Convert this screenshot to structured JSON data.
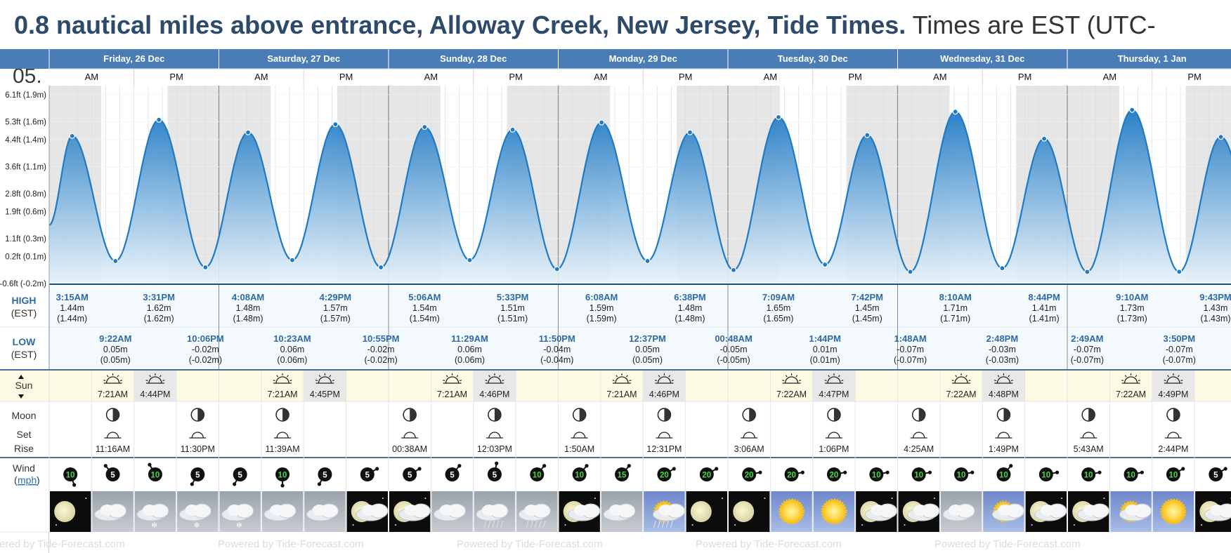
{
  "page": {
    "title": "0.8 nautical miles above entrance, Alloway Creek, New Jersey, Tide Times.",
    "timezone_note": "Times are EST (UTC-"
  },
  "colors": {
    "header_blue": "#4a7db5",
    "tide_blue": "#1f7ac4",
    "highlight_row": "#fcfae3",
    "label_text": "#2d6aa8"
  },
  "rows": {
    "high_label": "HIGH",
    "high_sub": "(EST)",
    "low_label": "LOW",
    "low_sub": "(EST)",
    "sun_label": "Sun",
    "moon_label": "Moon",
    "moon_set": "Set",
    "moon_rise": "Rise",
    "wind_label": "Wind",
    "wind_unit": "mph",
    "am": "AM",
    "pm": "PM",
    "footer": "Powered by Tide-Forecast.com"
  },
  "days": [
    {
      "label": "Friday, 26 Dec",
      "sunrise": "7:21AM",
      "sunset": "4:44PM",
      "moonset": "11:16AM",
      "moonrise": "11:30PM",
      "wind": [
        10,
        5,
        10,
        5
      ]
    },
    {
      "label": "Saturday, 27 Dec",
      "sunrise": "7:21AM",
      "sunset": "4:45PM",
      "moonset": "11:39AM",
      "moonrise": "",
      "wind": [
        5,
        10,
        5,
        5
      ]
    },
    {
      "label": "Sunday, 28 Dec",
      "sunrise": "7:21AM",
      "sunset": "4:46PM",
      "moonset": "00:38AM",
      "moonrise": "12:03PM",
      "wind": [
        5,
        5,
        5,
        10
      ]
    },
    {
      "label": "Monday, 29 Dec",
      "sunrise": "7:21AM",
      "sunset": "4:46PM",
      "moonset": "1:50AM",
      "moonrise": "12:31PM",
      "wind": [
        10,
        15,
        20,
        20
      ]
    },
    {
      "label": "Tuesday, 30 Dec",
      "sunrise": "7:22AM",
      "sunset": "4:47PM",
      "moonset": "3:06AM",
      "moonrise": "1:06PM",
      "wind": [
        20,
        20,
        20,
        10
      ]
    },
    {
      "label": "Wednesday, 31 Dec",
      "sunrise": "7:22AM",
      "sunset": "4:48PM",
      "moonset": "4:25AM",
      "moonrise": "1:49PM",
      "wind": [
        10,
        10,
        10,
        10
      ]
    },
    {
      "label": "Thursday, 1 Jan",
      "sunrise": "7:22AM",
      "sunset": "4:49PM",
      "moonset": "5:43AM",
      "moonrise": "2:44PM",
      "wind": [
        10,
        10,
        10,
        5
      ]
    }
  ],
  "chart_data": {
    "type": "area",
    "y_ticks": [
      "6.1ft (1.9m)",
      "5.3ft (1.6m)",
      "4.4ft (1.4m)",
      "3.6ft (1.1m)",
      "2.8ft (0.8m)",
      "1.9ft (0.6m)",
      "1.1ft (0.3m)",
      "0.2ft (0.1m)",
      "-0.6ft (-0.2m)"
    ],
    "y_tick_values_m": [
      1.9,
      1.6,
      1.4,
      1.1,
      0.8,
      0.6,
      0.3,
      0.1,
      -0.2
    ],
    "partial_top_tick": "05.",
    "ylim_m": [
      -0.2,
      2.0
    ],
    "xlim_hours": [
      0,
      168
    ],
    "highs": [
      {
        "day": 0,
        "time": "3:15AM",
        "h": 3.25,
        "m": "1.44m",
        "alt": "(1.44m)"
      },
      {
        "day": 0,
        "time": "3:31PM",
        "h": 15.52,
        "m": "1.62m",
        "alt": "(1.62m)"
      },
      {
        "day": 1,
        "time": "4:08AM",
        "h": 28.13,
        "m": "1.48m",
        "alt": "(1.48m)"
      },
      {
        "day": 1,
        "time": "4:29PM",
        "h": 40.48,
        "m": "1.57m",
        "alt": "(1.57m)"
      },
      {
        "day": 2,
        "time": "5:06AM",
        "h": 53.1,
        "m": "1.54m",
        "alt": "(1.54m)"
      },
      {
        "day": 2,
        "time": "5:33PM",
        "h": 65.55,
        "m": "1.51m",
        "alt": "(1.51m)"
      },
      {
        "day": 3,
        "time": "6:08AM",
        "h": 78.13,
        "m": "1.59m",
        "alt": "(1.59m)"
      },
      {
        "day": 3,
        "time": "6:38PM",
        "h": 90.63,
        "m": "1.48m",
        "alt": "(1.48m)"
      },
      {
        "day": 4,
        "time": "7:09AM",
        "h": 103.15,
        "m": "1.65m",
        "alt": "(1.65m)"
      },
      {
        "day": 4,
        "time": "7:42PM",
        "h": 115.7,
        "m": "1.45m",
        "alt": "(1.45m)"
      },
      {
        "day": 5,
        "time": "8:10AM",
        "h": 128.17,
        "m": "1.71m",
        "alt": "(1.71m)"
      },
      {
        "day": 5,
        "time": "8:44PM",
        "h": 140.73,
        "m": "1.41m",
        "alt": "(1.41m)"
      },
      {
        "day": 6,
        "time": "9:10AM",
        "h": 153.17,
        "m": "1.73m",
        "alt": "(1.73m)"
      },
      {
        "day": 6,
        "time": "9:43PM",
        "h": 165.72,
        "m": "1.43m",
        "alt": "(1.43m)"
      }
    ],
    "lows": [
      {
        "day": 0,
        "time": "9:22AM",
        "h": 9.37,
        "m": "0.05m",
        "alt": "(0.05m)"
      },
      {
        "day": 0,
        "time": "10:06PM",
        "h": 22.1,
        "m": "-0.02m",
        "alt": "(-0.02m)"
      },
      {
        "day": 1,
        "time": "10:23AM",
        "h": 34.38,
        "m": "0.06m",
        "alt": "(0.06m)"
      },
      {
        "day": 1,
        "time": "10:55PM",
        "h": 46.92,
        "m": "-0.02m",
        "alt": "(-0.02m)"
      },
      {
        "day": 2,
        "time": "11:29AM",
        "h": 59.48,
        "m": "0.06m",
        "alt": "(0.06m)"
      },
      {
        "day": 2,
        "time": "11:50PM",
        "h": 71.83,
        "m": "-0.04m",
        "alt": "(-0.04m)"
      },
      {
        "day": 3,
        "time": "12:37PM",
        "h": 84.62,
        "m": "0.05m",
        "alt": "(0.05m)"
      },
      {
        "day": 4,
        "time": "00:48AM",
        "h": 96.8,
        "m": "-0.05m",
        "alt": "(-0.05m)"
      },
      {
        "day": 4,
        "time": "1:44PM",
        "h": 109.73,
        "m": "0.01m",
        "alt": "(0.01m)"
      },
      {
        "day": 5,
        "time": "1:48AM",
        "h": 121.8,
        "m": "-0.07m",
        "alt": "(-0.07m)"
      },
      {
        "day": 5,
        "time": "2:48PM",
        "h": 134.8,
        "m": "-0.03m",
        "alt": "(-0.03m)"
      },
      {
        "day": 6,
        "time": "2:49AM",
        "h": 146.82,
        "m": "-0.07m",
        "alt": "(-0.07m)"
      },
      {
        "day": 6,
        "time": "3:50PM",
        "h": 159.83,
        "m": "-0.07m",
        "alt": "(-0.07m)"
      }
    ],
    "start_height_m": 0.45,
    "weather_icons": [
      "moon-clear",
      "cloudy",
      "snow",
      "snow",
      "snow",
      "cloudy",
      "cloudy",
      "moon-cloudy",
      "moon-cloudy",
      "cloudy",
      "rain",
      "rain",
      "moon-cloudy",
      "cloudy",
      "sun-rain",
      "moon-clear",
      "moon-clear",
      "sunny",
      "sunny",
      "moon-cloudy",
      "moon-cloudy",
      "cloudy",
      "sun-cloudy",
      "moon-cloudy",
      "moon-cloudy",
      "sun-cloudy",
      "sunny",
      "moon-cloudy"
    ]
  }
}
